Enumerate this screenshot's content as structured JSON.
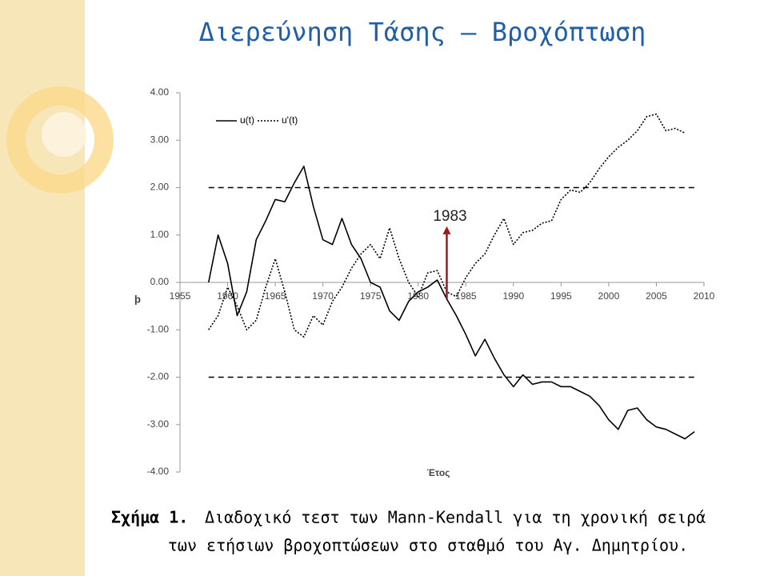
{
  "title": "Διερεύνηση Τάσης – Βροχόπτωση",
  "chart_data": {
    "type": "line",
    "x_label": "Έτος",
    "y_label": "þ",
    "x": [
      1958,
      1959,
      1960,
      1961,
      1962,
      1963,
      1964,
      1965,
      1966,
      1967,
      1968,
      1969,
      1970,
      1971,
      1972,
      1973,
      1974,
      1975,
      1976,
      1977,
      1978,
      1979,
      1980,
      1981,
      1982,
      1983,
      1984,
      1985,
      1986,
      1987,
      1988,
      1989,
      1990,
      1991,
      1992,
      1993,
      1994,
      1995,
      1996,
      1997,
      1998,
      1999,
      2000,
      2001,
      2002,
      2003,
      2004,
      2005,
      2006,
      2007,
      2008,
      2009
    ],
    "series": [
      {
        "name": "u(t)",
        "color": "#000000",
        "line_style": "solid",
        "values": [
          0.0,
          1.0,
          0.4,
          -0.7,
          -0.2,
          0.9,
          1.3,
          1.75,
          1.7,
          2.1,
          2.45,
          1.6,
          0.9,
          0.8,
          1.35,
          0.8,
          0.5,
          0.0,
          -0.1,
          -0.6,
          -0.8,
          -0.4,
          -0.2,
          -0.1,
          0.05,
          -0.35,
          -0.7,
          -1.1,
          -1.55,
          -1.2,
          -1.6,
          -1.95,
          -2.2,
          -1.95,
          -2.15,
          -2.1,
          -2.1,
          -2.2,
          -2.2,
          -2.3,
          -2.4,
          -2.6,
          -2.9,
          -3.1,
          -2.7,
          -2.65,
          -2.9,
          -3.05,
          -3.1,
          -3.2,
          -3.3,
          -3.15
        ]
      },
      {
        "name": "u'(t)",
        "color": "#000000",
        "line_style": "dotted",
        "values": [
          -1.0,
          -0.7,
          -0.1,
          -0.5,
          -1.0,
          -0.8,
          -0.1,
          0.5,
          -0.2,
          -1.0,
          -1.15,
          -0.7,
          -0.9,
          -0.4,
          -0.1,
          0.3,
          0.6,
          0.8,
          0.5,
          1.15,
          0.5,
          0.0,
          -0.3,
          0.2,
          0.25,
          -0.2,
          -0.3,
          0.1,
          0.4,
          0.6,
          1.0,
          1.35,
          0.8,
          1.05,
          1.1,
          1.25,
          1.3,
          1.75,
          1.95,
          1.9,
          2.1,
          2.4,
          2.65,
          2.85,
          3.0,
          3.2,
          3.5,
          3.55,
          3.2,
          3.25,
          3.15,
          null
        ]
      }
    ],
    "xlim": [
      1955,
      2010
    ],
    "xticks": [
      1955,
      1960,
      1965,
      1970,
      1975,
      1980,
      1985,
      1990,
      1995,
      2000,
      2005,
      2010
    ],
    "ylim": [
      -4,
      4
    ],
    "yticks": [
      {
        "value": 4,
        "label": "4.00"
      },
      {
        "value": 3,
        "label": "3.00"
      },
      {
        "value": 2,
        "label": "2.00"
      },
      {
        "value": 1,
        "label": "1.00"
      },
      {
        "value": 0,
        "label": "0.00"
      },
      {
        "value": -1,
        "label": "-1.00"
      },
      {
        "value": -2,
        "label": "-2.00"
      },
      {
        "value": -3,
        "label": "-3.00"
      },
      {
        "value": -4,
        "label": "-4.00"
      }
    ],
    "reference_lines": [
      2,
      -2
    ],
    "legend": "top-left",
    "annotation": {
      "text": "1983",
      "x": 1983,
      "y_from": -0.35,
      "y_to": 1.15,
      "color": "#a01818"
    }
  },
  "caption": {
    "label": "Σχήμα 1.",
    "lines": [
      "Διαδοχικό τεστ των Mann-Kendall για τη χρονική σειρά",
      "των ετήσιων βροχοπτώσεων στο σταθμό του Αγ. Δημητρίου."
    ]
  }
}
